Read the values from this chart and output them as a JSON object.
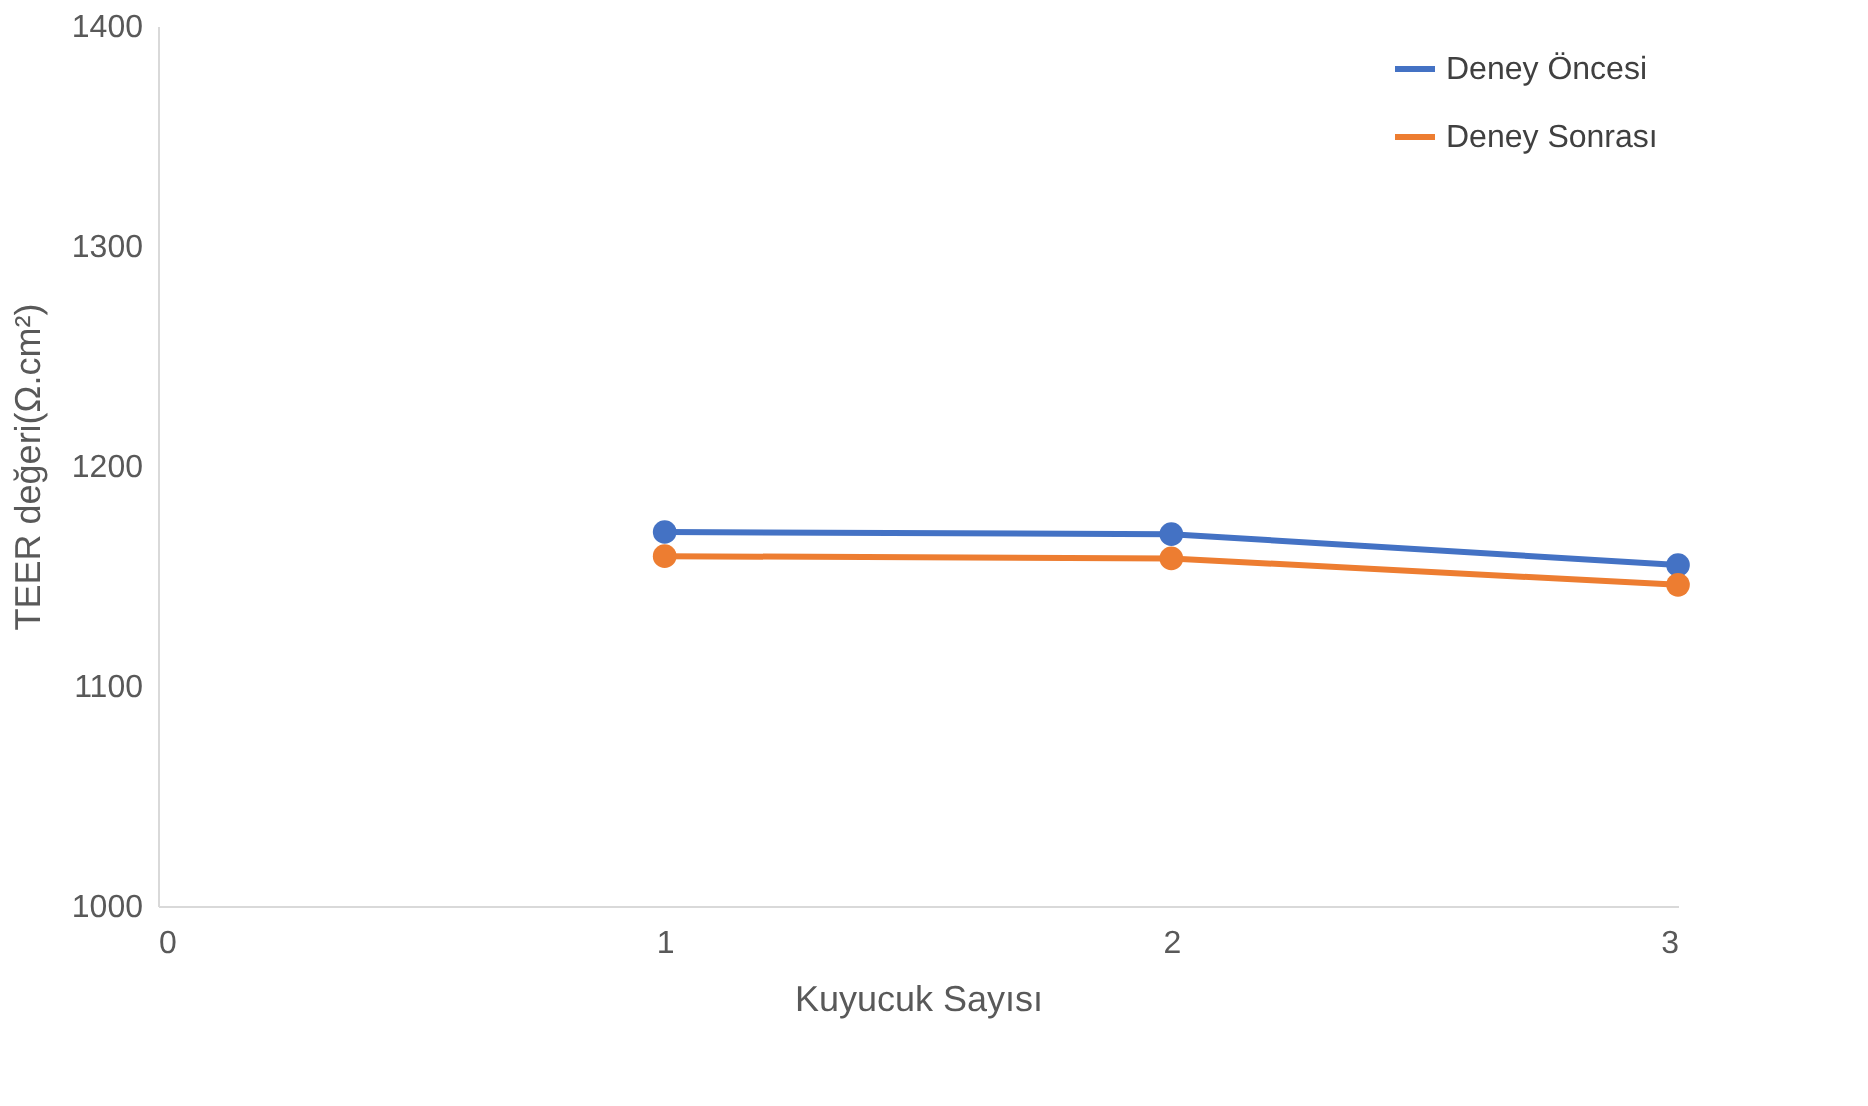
{
  "chart_data": {
    "type": "line",
    "xlabel": "Kuyucuk Sayısı",
    "ylabel": "TEER değeri(Ω.cm²)",
    "x": [
      1,
      2,
      3
    ],
    "series": [
      {
        "name": "Deney Öncesi",
        "color": "#4472c4",
        "values": [
          1170,
          1169,
          1155
        ]
      },
      {
        "name": "Deney Sonrası",
        "color": "#ed7d31",
        "values": [
          1159,
          1158,
          1146
        ]
      }
    ],
    "xlim": [
      0,
      3
    ],
    "xticks": [
      0,
      1,
      2,
      3
    ],
    "ylim": [
      1000,
      1400
    ],
    "yticks": [
      1000,
      1100,
      1200,
      1300,
      1400
    ],
    "grid": false,
    "legend": "top right",
    "marker": "circle",
    "line_style": "solid"
  }
}
